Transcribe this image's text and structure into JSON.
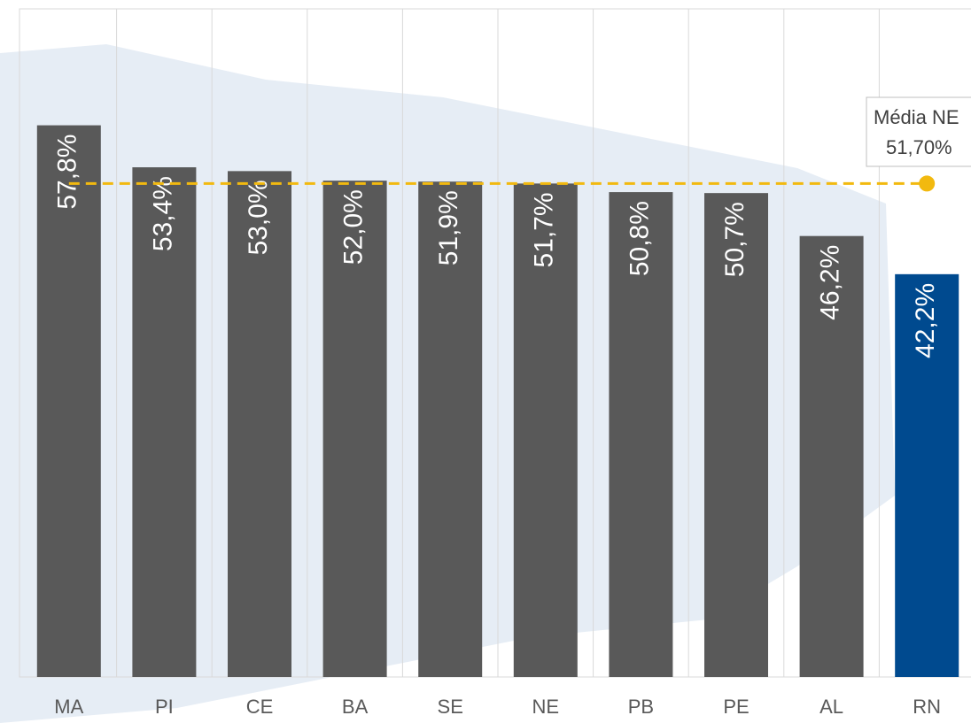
{
  "chart_data": {
    "type": "bar",
    "categories": [
      "MA",
      "PI",
      "CE",
      "BA",
      "SE",
      "NE",
      "PB",
      "PE",
      "AL",
      "RN"
    ],
    "values": [
      57.8,
      53.4,
      53.0,
      52.0,
      51.9,
      51.7,
      50.8,
      50.7,
      46.2,
      42.2
    ],
    "value_labels": [
      "57,8%",
      "53,4%",
      "53,0%",
      "52,0%",
      "51,9%",
      "51,7%",
      "50,8%",
      "50,7%",
      "46,2%",
      "42,2%"
    ],
    "colors": [
      "#595959",
      "#595959",
      "#595959",
      "#595959",
      "#595959",
      "#595959",
      "#595959",
      "#595959",
      "#595959",
      "#004a8f"
    ],
    "ylim": [
      0,
      70
    ],
    "reference_line": {
      "name": "Média NE",
      "value": 51.7,
      "label": "51,70%",
      "color": "#f2b90f"
    }
  }
}
